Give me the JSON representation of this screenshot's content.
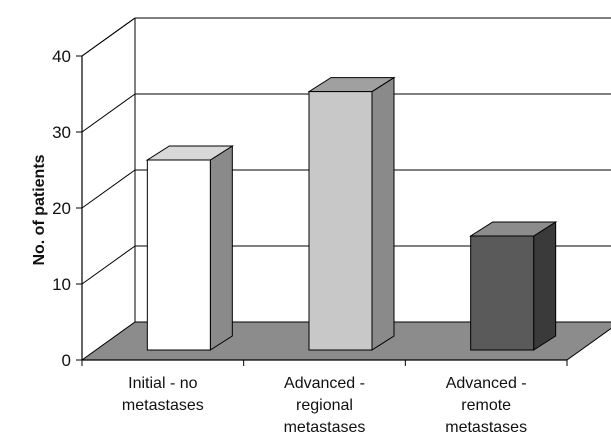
{
  "chart_data": {
    "type": "bar",
    "categories": [
      [
        "Initial - no",
        "metastases"
      ],
      [
        "Advanced -",
        "regional",
        "metastases"
      ],
      [
        "Advanced -",
        "remote",
        "metastases"
      ]
    ],
    "values": [
      25,
      34,
      15
    ],
    "title": "",
    "xlabel": "",
    "ylabel": "No. of patients",
    "ylim": [
      0,
      40
    ],
    "yticks": [
      0,
      10,
      20,
      30,
      40
    ],
    "grid": true,
    "style": "3d",
    "colors": {
      "bars": [
        "#ffffff",
        "#c8c8c8",
        "#5a5a5a"
      ],
      "bar_sides": [
        "#8a8a8a",
        "#8a8a8a",
        "#3a3a3a"
      ],
      "bar_tops": [
        "#d8d8d8",
        "#a0a0a0",
        "#8c8c8c"
      ],
      "floor": "#8c8c8c",
      "lines": "#000000"
    }
  }
}
